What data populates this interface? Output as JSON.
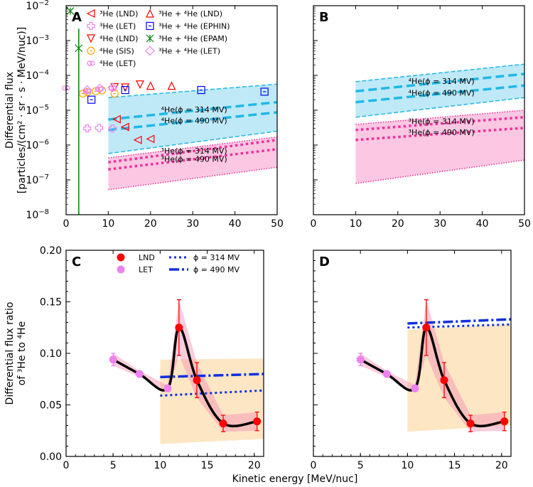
{
  "xlabel": "Kinetic energy [MeV/nuc]",
  "top_ylabel": [
    "Differential flux",
    "[particles/(cm² · sr · s · MeV/nuc)]"
  ],
  "bottom_ylabel": [
    "Differential flux ratio",
    "of ³He to ⁴He"
  ],
  "colors": {
    "he4_band": "#bfe9f7",
    "he4_line": "#20b8e8",
    "he3_band": "#fbc7e3",
    "he3_line": "#f0309a",
    "ratio_band": "#fde6c4",
    "model": "#1030e0",
    "lnd": "#ff0000",
    "let": "#ee82ee"
  },
  "chart_data": [
    {
      "panel": "A",
      "type": "scatter",
      "yscale": "log",
      "xlim": [
        0,
        50
      ],
      "ylim": [
        1e-08,
        0.01
      ],
      "xticks": [
        "0",
        "10",
        "20",
        "30",
        "40",
        "50"
      ],
      "yticks": [
        "-8",
        "-7",
        "-6",
        "-5",
        "-4",
        "-3",
        "-2"
      ],
      "series": [
        {
          "name": "³He (LND)",
          "marker": "triangle-left",
          "color": "#ff0000",
          "x": [
            12,
            14,
            17,
            20
          ],
          "y": [
            5.5e-06,
            3.3e-06,
            1.4e-06,
            1.5e-06
          ]
        },
        {
          "name": "³He (LET)",
          "marker": "plus",
          "color": "#ee82ee",
          "x": [
            5,
            7.8,
            11
          ],
          "y": [
            3e-06,
            3.1e-06,
            3e-06
          ]
        },
        {
          "name": "⁴He (LND)",
          "marker": "triangle-down",
          "color": "#ff0000",
          "x": [
            11.5,
            14,
            17.5
          ],
          "y": [
            4.6e-05,
            4.5e-05,
            5.5e-05
          ]
        },
        {
          "name": "⁴He (SIS)",
          "marker": "circle",
          "color": "#ffa500",
          "x": [
            4,
            5,
            7,
            8.5,
            11.5
          ],
          "y": [
            3e-05,
            3.3e-05,
            3.5e-05,
            3.7e-05,
            3e-05
          ]
        },
        {
          "name": "⁴He (LET)",
          "marker": "flower",
          "color": "#ee82ee",
          "x": [
            0,
            5,
            7.8,
            11
          ],
          "y": [
            4.3e-05,
            3.5e-05,
            4e-05,
            4.2e-05
          ]
        },
        {
          "name": "³He + ⁴He (LND)",
          "marker": "triangle-up",
          "color": "#ff0000",
          "x": [
            20,
            25
          ],
          "y": [
            5e-05,
            5e-05
          ]
        },
        {
          "name": "³He + ⁴He (EPHIN)",
          "marker": "square",
          "color": "#0000ff",
          "x": [
            6,
            14,
            32,
            47
          ],
          "y": [
            2e-05,
            3.8e-05,
            3.8e-05,
            3.4e-05
          ]
        },
        {
          "name": "³He + ⁴He (EPAM)",
          "marker": "x",
          "color": "#008000",
          "x": [
            1,
            3
          ],
          "y": [
            0.007,
            0.0006
          ]
        },
        {
          "name": "³He + ⁴He (LET)",
          "marker": "diamond",
          "color": "#ee82ee",
          "x": [
            5,
            8,
            11
          ],
          "y": [
            3.8e-05,
            4.2e-05,
            4.5e-05
          ]
        }
      ],
      "models": {
        "x": [
          10,
          50
        ],
        "he4_band": {
          "upper": [
            2.3e-05,
            5.6e-05
          ],
          "lower": [
            5.7e-07,
            2.5e-06
          ]
        },
        "he4_314": [
          5.4e-06,
          1.7e-05
        ],
        "he4_490": [
          2.7e-06,
          8.7e-06
        ],
        "he3_band": {
          "upper": [
            4.3e-07,
            1.7e-06
          ],
          "lower": [
            5.2e-08,
            2.3e-07
          ]
        },
        "he3_314": [
          3.2e-07,
          1.4e-06
        ],
        "he3_490": [
          2e-07,
          7.6e-07
        ]
      },
      "labels": {
        "he4_314": "⁴He(ϕ = 314 MV)",
        "he4_490": "⁴He(ϕ = 490 MV)",
        "he3_314": "³He(ϕ = 314 MV)",
        "he3_490": "³He(ϕ = 490 MV)"
      }
    },
    {
      "panel": "B",
      "type": "scatter",
      "yscale": "log",
      "xlim": [
        0,
        50
      ],
      "ylim": [
        1e-08,
        0.01
      ],
      "xticks": [
        "0",
        "10",
        "20",
        "30",
        "40",
        "50"
      ],
      "models": {
        "x": [
          10,
          50
        ],
        "he4_band": {
          "upper": [
            6.6e-05,
            0.00021
          ],
          "lower": [
            6.3e-06,
            2.3e-05
          ]
        },
        "he4_314": [
          3.5e-05,
          0.00011
        ],
        "he4_490": [
          1.7e-05,
          5.1e-05
        ],
        "he3_band": {
          "upper": [
            3.9e-06,
            1e-05
          ],
          "lower": [
            7.9e-08,
            3.7e-07
          ]
        },
        "he3_314": [
          2.7e-06,
          6.3e-06
        ],
        "he3_490": [
          1.4e-06,
          3.1e-06
        ]
      },
      "labels": {
        "he4_314": "⁴He(ϕ = 314 MV)",
        "he4_490": "⁴He(ϕ = 490 MV)",
        "he3_314": "³He(ϕ = 314 MV)",
        "he3_490": "³He(ϕ = 490 MV)"
      }
    },
    {
      "panel": "C",
      "type": "line",
      "xlim": [
        0,
        21
      ],
      "ylim": [
        0,
        0.2
      ],
      "xticks": [
        "0",
        "5",
        "10",
        "15",
        "20"
      ],
      "yticks": [
        "0.00",
        "0.05",
        "0.10",
        "0.15",
        "0.20"
      ],
      "let": {
        "name": "LET",
        "x": [
          5,
          7.8,
          10.8
        ],
        "y": [
          0.094,
          0.08,
          0.066
        ],
        "err": [
          0.006,
          0.003,
          0.003
        ]
      },
      "lnd": {
        "name": "LND",
        "x": [
          12,
          13.9,
          16.7,
          20.3
        ],
        "y": [
          0.125,
          0.074,
          0.032,
          0.034
        ],
        "err": [
          0.027,
          0.017,
          0.008,
          0.009
        ]
      },
      "phi314": {
        "name": "ϕ = 314 MV",
        "x": [
          10,
          21
        ],
        "y": [
          0.059,
          0.064
        ]
      },
      "phi490": {
        "name": "ϕ = 490 MV",
        "x": [
          10,
          21
        ],
        "y": [
          0.077,
          0.08
        ]
      },
      "band": {
        "x": [
          10,
          21
        ],
        "upper": [
          0.094,
          0.095
        ],
        "lower": [
          0.012,
          0.017
        ]
      }
    },
    {
      "panel": "D",
      "type": "line",
      "xlim": [
        0,
        21
      ],
      "ylim": [
        0,
        0.2
      ],
      "xticks": [
        "0",
        "5",
        "10",
        "15",
        "20"
      ],
      "let": {
        "x": [
          5,
          7.8,
          10.8
        ],
        "y": [
          0.094,
          0.08,
          0.066
        ],
        "err": [
          0.006,
          0.003,
          0.003
        ]
      },
      "lnd": {
        "x": [
          12,
          13.9,
          16.7,
          20.3
        ],
        "y": [
          0.125,
          0.074,
          0.032,
          0.034
        ],
        "err": [
          0.027,
          0.017,
          0.008,
          0.009
        ]
      },
      "phi314": {
        "x": [
          10,
          21
        ],
        "y": [
          0.125,
          0.128
        ]
      },
      "phi490": {
        "x": [
          10,
          21
        ],
        "y": [
          0.129,
          0.133
        ]
      },
      "band": {
        "x": [
          10,
          21
        ],
        "upper": [
          0.123,
          0.128
        ],
        "lower": [
          0.024,
          0.03
        ]
      }
    }
  ]
}
